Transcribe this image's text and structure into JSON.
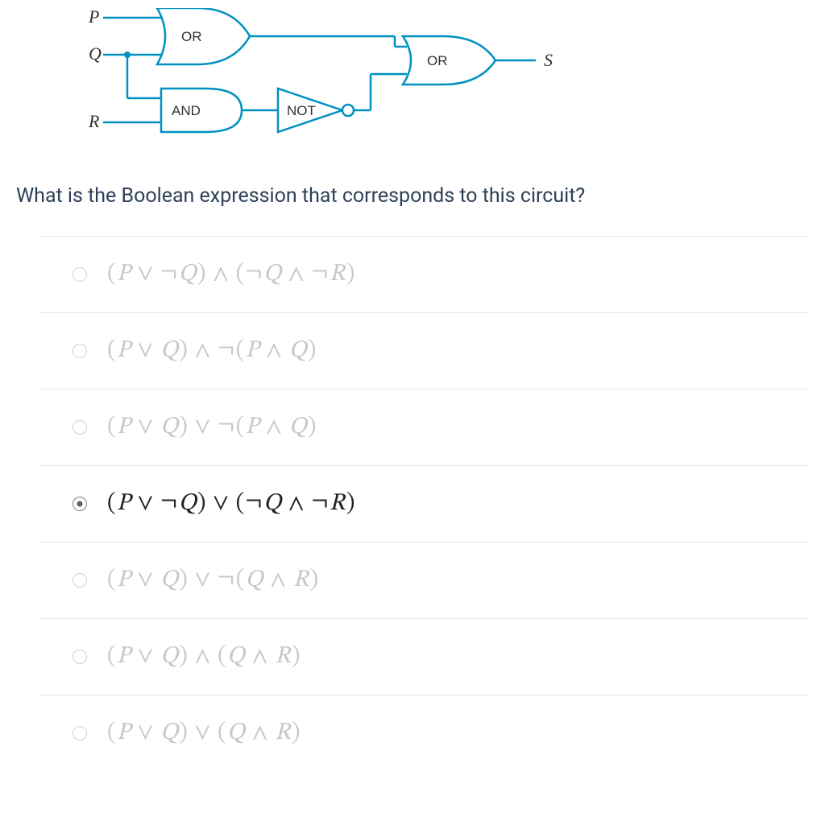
{
  "circuit": {
    "stroke_color": "#0091c2",
    "stroke_width": 2.5,
    "fill_color": "#ffffff",
    "text_color": "#333333",
    "input_labels": {
      "P": "P",
      "Q": "Q",
      "R": "R"
    },
    "output_label": "S",
    "gates": {
      "or1": "OR",
      "and": "AND",
      "not": "NOT",
      "or2": "OR"
    },
    "input_font_style": "italic",
    "input_font_size": 22
  },
  "question": {
    "text": "What is the Boolean expression that corresponds to this circuit?",
    "color": "#2e4057",
    "font_size": 25
  },
  "options": {
    "selected_index": 3,
    "unselected_color": "#c8c8c8",
    "selected_color": "#222222",
    "font_size": 30,
    "border_color": "#e6e6e6",
    "items": [
      "(P ∨ ¬Q) ∧ (¬Q ∧ ¬R)",
      "(P ∨ Q) ∧ ¬(P ∧ Q)",
      "(P ∨ Q) ∨ ¬(P ∧ Q)",
      "(P ∨ ¬Q) ∨ (¬Q ∧ ¬R)",
      "(P ∨ Q) ∨ ¬(Q ∧ R)",
      "(P ∨ Q) ∧ (Q ∧ R)",
      "(P ∨ Q) ∨ (Q ∧ R)"
    ]
  }
}
